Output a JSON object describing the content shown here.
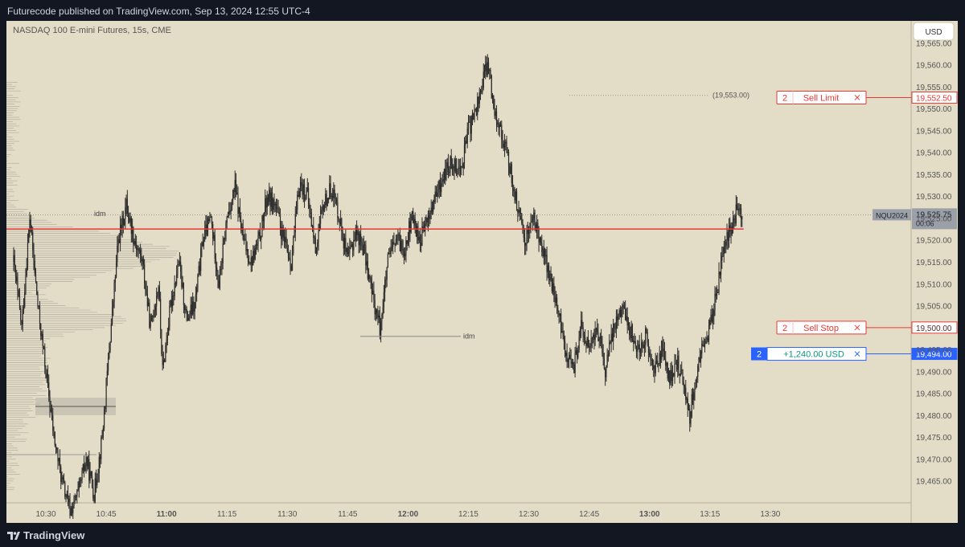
{
  "header": {
    "published_text": "Futurecode published on TradingView.com, Sep 13, 2024 12:55 UTC-4"
  },
  "footer": {
    "brand": "TradingView"
  },
  "chart_data": {
    "type": "candlestick",
    "title": "NASDAQ 100 E-mini Futures, 15s, CME",
    "currency_button": "USD",
    "ylim": [
      19460,
      19570
    ],
    "y_ticks": [
      19465,
      19470,
      19475,
      19480,
      19485,
      19490,
      19495,
      19500,
      19505,
      19510,
      19515,
      19520,
      19525,
      19530,
      19535,
      19540,
      19545,
      19550,
      19555,
      19560,
      19565
    ],
    "x_ticks": [
      {
        "t": 30,
        "label": "10:30",
        "bold": false
      },
      {
        "t": 45,
        "label": "10:45",
        "bold": false
      },
      {
        "t": 60,
        "label": "11:00",
        "bold": true
      },
      {
        "t": 75,
        "label": "11:15",
        "bold": false
      },
      {
        "t": 90,
        "label": "11:30",
        "bold": false
      },
      {
        "t": 105,
        "label": "11:45",
        "bold": false
      },
      {
        "t": 120,
        "label": "12:00",
        "bold": true
      },
      {
        "t": 135,
        "label": "12:15",
        "bold": false
      },
      {
        "t": 150,
        "label": "12:30",
        "bold": false
      },
      {
        "t": 165,
        "label": "12:45",
        "bold": false
      },
      {
        "t": 180,
        "label": "13:00",
        "bold": true
      },
      {
        "t": 195,
        "label": "13:15",
        "bold": false
      },
      {
        "t": 210,
        "label": "13:30",
        "bold": false
      }
    ],
    "price_path": [
      [
        22,
        19515
      ],
      [
        24,
        19500
      ],
      [
        26,
        19525
      ],
      [
        28,
        19505
      ],
      [
        30,
        19490
      ],
      [
        32,
        19475
      ],
      [
        34,
        19465
      ],
      [
        36,
        19458
      ],
      [
        38,
        19462
      ],
      [
        40,
        19470
      ],
      [
        42,
        19462
      ],
      [
        44,
        19475
      ],
      [
        46,
        19498
      ],
      [
        48,
        19520
      ],
      [
        50,
        19528
      ],
      [
        52,
        19520
      ],
      [
        54,
        19515
      ],
      [
        56,
        19500
      ],
      [
        58,
        19510
      ],
      [
        59,
        19490
      ],
      [
        61,
        19505
      ],
      [
        63,
        19515
      ],
      [
        65,
        19502
      ],
      [
        67,
        19505
      ],
      [
        69,
        19520
      ],
      [
        71,
        19525
      ],
      [
        73,
        19510
      ],
      [
        75,
        19525
      ],
      [
        77,
        19532
      ],
      [
        79,
        19520
      ],
      [
        81,
        19515
      ],
      [
        83,
        19520
      ],
      [
        85,
        19530
      ],
      [
        87,
        19528
      ],
      [
        89,
        19520
      ],
      [
        91,
        19515
      ],
      [
        93,
        19533
      ],
      [
        95,
        19530
      ],
      [
        97,
        19518
      ],
      [
        99,
        19528
      ],
      [
        101,
        19532
      ],
      [
        103,
        19525
      ],
      [
        105,
        19515
      ],
      [
        107,
        19522
      ],
      [
        109,
        19518
      ],
      [
        111,
        19508
      ],
      [
        113,
        19500
      ],
      [
        115,
        19515
      ],
      [
        117,
        19520
      ],
      [
        119,
        19518
      ],
      [
        121,
        19525
      ],
      [
        123,
        19520
      ],
      [
        125,
        19525
      ],
      [
        127,
        19530
      ],
      [
        129,
        19535
      ],
      [
        131,
        19538
      ],
      [
        133,
        19536
      ],
      [
        135,
        19545
      ],
      [
        137,
        19550
      ],
      [
        139,
        19558
      ],
      [
        140,
        19560
      ],
      [
        141,
        19552
      ],
      [
        143,
        19545
      ],
      [
        145,
        19538
      ],
      [
        147,
        19528
      ],
      [
        149,
        19520
      ],
      [
        151,
        19525
      ],
      [
        153,
        19520
      ],
      [
        155,
        19512
      ],
      [
        157,
        19505
      ],
      [
        159,
        19495
      ],
      [
        161,
        19490
      ],
      [
        163,
        19500
      ],
      [
        165,
        19495
      ],
      [
        167,
        19500
      ],
      [
        169,
        19490
      ],
      [
        171,
        19500
      ],
      [
        173,
        19505
      ],
      [
        175,
        19500
      ],
      [
        177,
        19495
      ],
      [
        179,
        19498
      ],
      [
        181,
        19490
      ],
      [
        183,
        19495
      ],
      [
        185,
        19488
      ],
      [
        187,
        19492
      ],
      [
        189,
        19485
      ],
      [
        190,
        19480
      ],
      [
        191,
        19486
      ],
      [
        193,
        19495
      ],
      [
        195,
        19500
      ],
      [
        197,
        19510
      ],
      [
        199,
        19520
      ],
      [
        201,
        19525
      ],
      [
        202,
        19528
      ],
      [
        203,
        19526
      ]
    ],
    "last_price": {
      "label": "NQU2024",
      "value": "19,525.75",
      "countdown": "00:06"
    },
    "horizontal_line": {
      "price": 19522.5,
      "color": "#e53935"
    },
    "orders": [
      {
        "qty": "2",
        "label": "Sell Limit",
        "price": 19552.5,
        "price_label": "19,552.50",
        "color": "#e53935",
        "type": "limit"
      },
      {
        "qty": "2",
        "label": "Sell Stop",
        "price": 19500,
        "price_label": "19,500.00",
        "color": "#e53935",
        "type": "stop"
      },
      {
        "qty": "2",
        "label": "+1,240.00 USD",
        "price": 19494,
        "price_label": "19,494.00",
        "color": "#2962ff",
        "type": "position"
      }
    ],
    "annotations": [
      {
        "text": "(19,553.00)",
        "price": 19553
      },
      {
        "text": "idm",
        "price": 19526
      },
      {
        "text": "idm",
        "price": 19498
      }
    ],
    "close_icon": "close-icon",
    "colors": {
      "background": "#e3dcc6",
      "candle": "#2b2b2b",
      "profile": "#b8b4a6",
      "text": "#555555"
    }
  }
}
